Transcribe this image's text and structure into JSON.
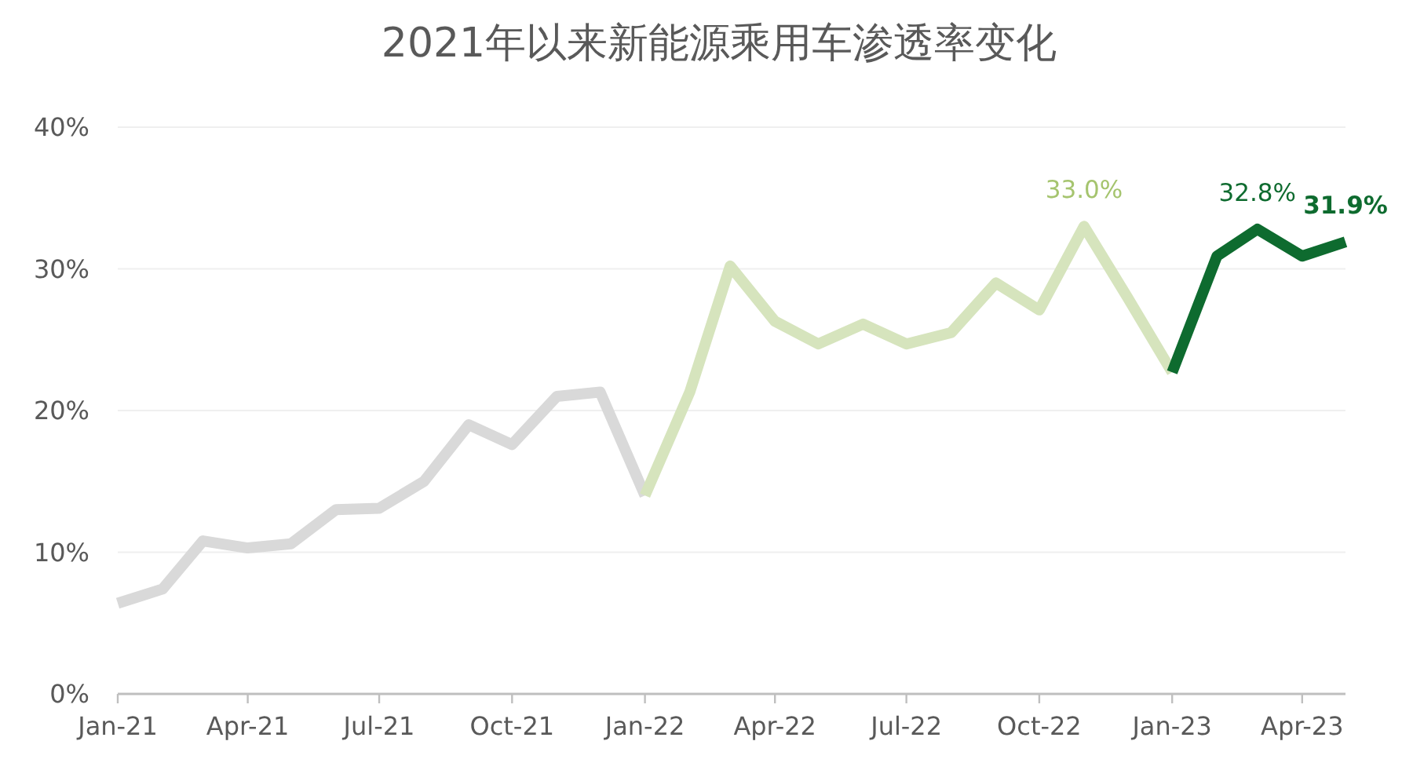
{
  "chart_data": {
    "type": "line",
    "title": "2021年以来新能源乘用车渗透率变化",
    "xlim": [
      "2021-01",
      "2023-05"
    ],
    "xticks": [
      {
        "value": "2021-01",
        "label": "Jan-21"
      },
      {
        "value": "2021-04",
        "label": "Apr-21"
      },
      {
        "value": "2021-07",
        "label": "Jul-21"
      },
      {
        "value": "2021-10",
        "label": "Oct-21"
      },
      {
        "value": "2022-01",
        "label": "Jan-22"
      },
      {
        "value": "2022-04",
        "label": "Apr-22"
      },
      {
        "value": "2022-07",
        "label": "Jul-22"
      },
      {
        "value": "2022-10",
        "label": "Oct-22"
      },
      {
        "value": "2023-01",
        "label": "Jan-23"
      },
      {
        "value": "2023-04",
        "label": "Apr-23"
      }
    ],
    "ylim": [
      0,
      40
    ],
    "yticks": [
      {
        "value": 0,
        "label": "0%"
      },
      {
        "value": 10,
        "label": "10%"
      },
      {
        "value": 20,
        "label": "20%"
      },
      {
        "value": 30,
        "label": "30%"
      },
      {
        "value": 40,
        "label": "40%"
      }
    ],
    "grid": "y",
    "series": [
      {
        "color": "#d9d9d9",
        "x": [
          "2021-01",
          "2021-02",
          "2021-03",
          "2021-04",
          "2021-05",
          "2021-06",
          "2021-07",
          "2021-08",
          "2021-09",
          "2021-10",
          "2021-11",
          "2021-12",
          "2022-01"
        ],
        "values": [
          6.4,
          7.4,
          10.8,
          10.3,
          10.6,
          13.0,
          13.1,
          15.0,
          19.0,
          17.6,
          21.0,
          21.3,
          14.0
        ]
      },
      {
        "color": "#d6e4bd",
        "x": [
          "2022-01",
          "2022-02",
          "2022-03",
          "2022-04",
          "2022-05",
          "2022-06",
          "2022-07",
          "2022-08",
          "2022-09",
          "2022-10",
          "2022-11",
          "2022-12",
          "2023-01"
        ],
        "values": [
          14.0,
          21.3,
          30.2,
          26.3,
          24.7,
          26.1,
          24.7,
          25.5,
          29.0,
          27.1,
          33.0,
          28.0,
          22.7
        ],
        "value_labels": [
          null,
          null,
          null,
          null,
          null,
          null,
          null,
          null,
          null,
          null,
          "33.0%",
          null,
          null
        ]
      },
      {
        "color": "#0e6b2f",
        "x": [
          "2023-01",
          "2023-02",
          "2023-03",
          "2023-04",
          "2023-05"
        ],
        "values": [
          22.7,
          30.9,
          32.8,
          30.9,
          31.9
        ],
        "value_labels": [
          null,
          null,
          "32.8%",
          null,
          "31.9%"
        ]
      }
    ]
  }
}
